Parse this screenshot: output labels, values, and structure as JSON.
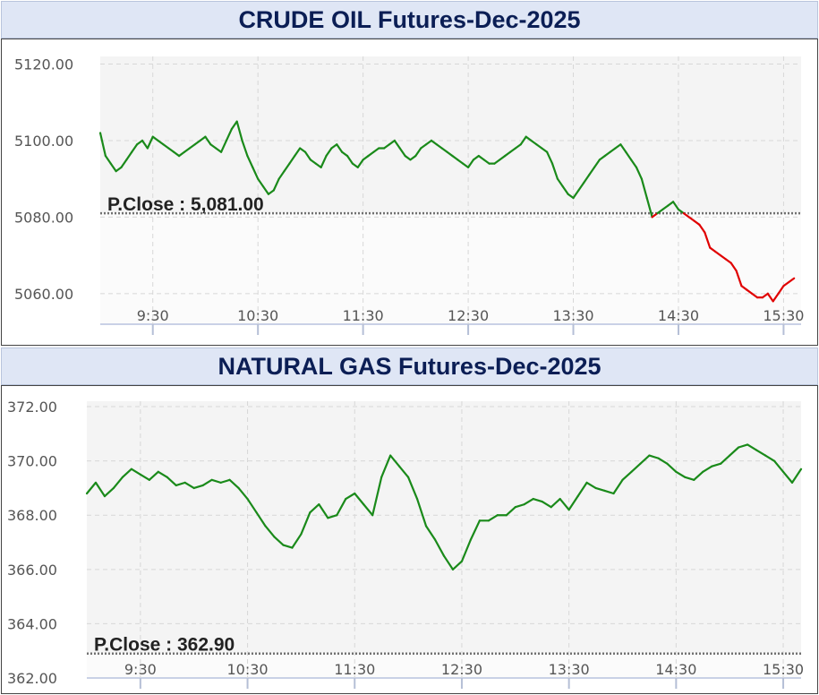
{
  "chart_data": [
    {
      "type": "line",
      "title": "CRUDE OIL Futures-Dec-2025",
      "prev_close_label": "P.Close : 5,081.00",
      "prev_close": 5081.0,
      "ylim": [
        5052,
        5122
      ],
      "yticks": [
        "5060.00",
        "5080.00",
        "5100.00",
        "5120.00"
      ],
      "ytick_values": [
        5060,
        5080,
        5100,
        5120
      ],
      "xlim": [
        "9:00",
        "15:40"
      ],
      "xticks": [
        "9:30",
        "10:30",
        "11:30",
        "12:30",
        "13:30",
        "14:30",
        "15:30"
      ],
      "x": [
        "9:00",
        "9:03",
        "9:06",
        "9:09",
        "9:12",
        "9:15",
        "9:18",
        "9:21",
        "9:24",
        "9:27",
        "9:30",
        "9:33",
        "9:36",
        "9:39",
        "9:42",
        "9:45",
        "9:48",
        "9:51",
        "9:54",
        "9:57",
        "10:00",
        "10:03",
        "10:06",
        "10:09",
        "10:12",
        "10:15",
        "10:18",
        "10:21",
        "10:24",
        "10:27",
        "10:30",
        "10:33",
        "10:36",
        "10:39",
        "10:42",
        "10:45",
        "10:48",
        "10:51",
        "10:54",
        "10:57",
        "11:00",
        "11:03",
        "11:06",
        "11:09",
        "11:12",
        "11:15",
        "11:18",
        "11:21",
        "11:24",
        "11:27",
        "11:30",
        "11:33",
        "11:36",
        "11:39",
        "11:42",
        "11:45",
        "11:48",
        "11:51",
        "11:54",
        "11:57",
        "12:00",
        "12:03",
        "12:06",
        "12:09",
        "12:12",
        "12:15",
        "12:18",
        "12:21",
        "12:24",
        "12:27",
        "12:30",
        "12:33",
        "12:36",
        "12:39",
        "12:42",
        "12:45",
        "12:48",
        "12:51",
        "12:54",
        "12:57",
        "13:00",
        "13:03",
        "13:06",
        "13:09",
        "13:12",
        "13:15",
        "13:18",
        "13:21",
        "13:24",
        "13:27",
        "13:30",
        "13:33",
        "13:36",
        "13:39",
        "13:42",
        "13:45",
        "13:48",
        "13:51",
        "13:54",
        "13:57",
        "14:00",
        "14:03",
        "14:06",
        "14:09",
        "14:12",
        "14:15",
        "14:18",
        "14:21",
        "14:24",
        "14:27",
        "14:30",
        "14:33",
        "14:36",
        "14:39",
        "14:42",
        "14:45",
        "14:48",
        "14:51",
        "14:54",
        "14:57",
        "15:00",
        "15:03",
        "15:06",
        "15:09",
        "15:12",
        "15:15",
        "15:18",
        "15:21",
        "15:24",
        "15:27",
        "15:30",
        "15:33",
        "15:36"
      ],
      "y": [
        5102,
        5096,
        5094,
        5092,
        5093,
        5095,
        5097,
        5099,
        5100,
        5098,
        5101,
        5100,
        5099,
        5098,
        5097,
        5096,
        5097,
        5098,
        5099,
        5100,
        5101,
        5099,
        5098,
        5097,
        5100,
        5103,
        5105,
        5100,
        5096,
        5093,
        5090,
        5088,
        5086,
        5087,
        5090,
        5092,
        5094,
        5096,
        5098,
        5097,
        5095,
        5094,
        5093,
        5096,
        5098,
        5099,
        5097,
        5096,
        5094,
        5093,
        5095,
        5096,
        5097,
        5098,
        5098,
        5099,
        5100,
        5098,
        5096,
        5095,
        5096,
        5098,
        5099,
        5100,
        5099,
        5098,
        5097,
        5096,
        5095,
        5094,
        5093,
        5095,
        5096,
        5095,
        5094,
        5094,
        5095,
        5096,
        5097,
        5098,
        5099,
        5101,
        5100,
        5099,
        5098,
        5097,
        5094,
        5090,
        5088,
        5086,
        5085,
        5087,
        5089,
        5091,
        5093,
        5095,
        5096,
        5097,
        5098,
        5099,
        5097,
        5095,
        5093,
        5090,
        5085,
        5080,
        5081,
        5082,
        5083,
        5084,
        5082,
        5081,
        5080,
        5079,
        5078,
        5076,
        5072,
        5071,
        5070,
        5069,
        5068,
        5066,
        5062,
        5061,
        5060,
        5059,
        5059,
        5060,
        5058,
        5060,
        5062,
        5063,
        5064
      ],
      "colors": {
        "above": "#1a8a1a",
        "below": "#e00000",
        "prev_close_line": "#707070"
      }
    },
    {
      "type": "line",
      "title": "NATURAL GAS Futures-Dec-2025",
      "prev_close_label": "P.Close : 362.90",
      "prev_close": 362.9,
      "ylim": [
        362,
        372.2
      ],
      "yticks": [
        "362.00",
        "364.00",
        "366.00",
        "368.00",
        "370.00",
        "372.00"
      ],
      "ytick_values": [
        362,
        364,
        366,
        368,
        370,
        372
      ],
      "xlim": [
        "9:00",
        "15:40"
      ],
      "xticks": [
        "9:30",
        "10:30",
        "11:30",
        "12:30",
        "13:30",
        "14:30",
        "15:30"
      ],
      "x": [
        "9:00",
        "9:05",
        "9:10",
        "9:15",
        "9:20",
        "9:25",
        "9:30",
        "9:35",
        "9:40",
        "9:45",
        "9:50",
        "9:55",
        "10:00",
        "10:05",
        "10:10",
        "10:15",
        "10:20",
        "10:25",
        "10:30",
        "10:35",
        "10:40",
        "10:45",
        "10:50",
        "10:55",
        "11:00",
        "11:05",
        "11:10",
        "11:15",
        "11:20",
        "11:25",
        "11:30",
        "11:35",
        "11:40",
        "11:45",
        "11:50",
        "11:55",
        "12:00",
        "12:05",
        "12:10",
        "12:15",
        "12:20",
        "12:25",
        "12:30",
        "12:35",
        "12:40",
        "12:45",
        "12:50",
        "12:55",
        "13:00",
        "13:05",
        "13:10",
        "13:15",
        "13:20",
        "13:25",
        "13:30",
        "13:35",
        "13:40",
        "13:45",
        "13:50",
        "13:55",
        "14:00",
        "14:05",
        "14:10",
        "14:15",
        "14:20",
        "14:25",
        "14:30",
        "14:35",
        "14:40",
        "14:45",
        "14:50",
        "14:55",
        "15:00",
        "15:05",
        "15:10",
        "15:15",
        "15:20",
        "15:25",
        "15:30",
        "15:35",
        "15:40"
      ],
      "y": [
        368.8,
        369.2,
        368.7,
        369.0,
        369.4,
        369.7,
        369.5,
        369.3,
        369.6,
        369.4,
        369.1,
        369.2,
        369.0,
        369.1,
        369.3,
        369.2,
        369.3,
        369.0,
        368.6,
        368.1,
        367.6,
        367.2,
        366.9,
        366.8,
        367.3,
        368.1,
        368.4,
        367.9,
        368.0,
        368.6,
        368.8,
        368.4,
        368.0,
        369.4,
        370.2,
        369.8,
        369.4,
        368.6,
        367.6,
        367.1,
        366.5,
        366.0,
        366.3,
        367.1,
        367.8,
        367.8,
        368.0,
        368.0,
        368.3,
        368.4,
        368.6,
        368.5,
        368.3,
        368.6,
        368.2,
        368.7,
        369.2,
        369.0,
        368.9,
        368.8,
        369.3,
        369.6,
        369.9,
        370.2,
        370.1,
        369.9,
        369.6,
        369.4,
        369.3,
        369.6,
        369.8,
        369.9,
        370.2,
        370.5,
        370.6,
        370.4,
        370.2,
        370.0,
        369.6,
        369.2,
        369.7
      ],
      "colors": {
        "above": "#1a8a1a",
        "below": "#e00000",
        "prev_close_line": "#707070"
      }
    }
  ]
}
